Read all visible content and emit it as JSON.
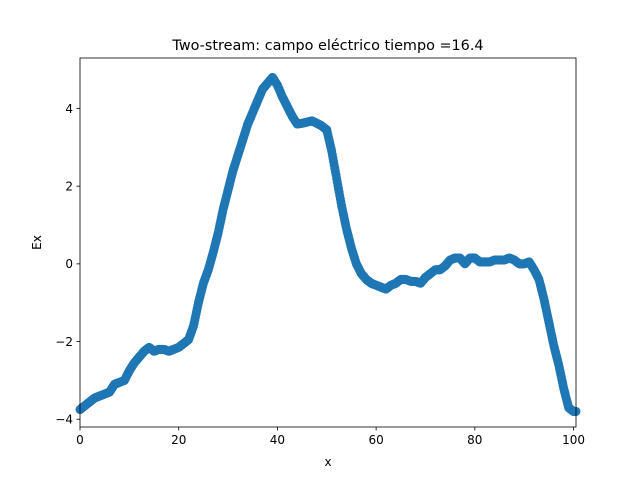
{
  "chart_data": {
    "type": "scatter",
    "title": "Two-stream: campo eléctrico  tiempo =16.4",
    "xlabel": "x",
    "ylabel": "Ex",
    "xlim": [
      0,
      100.5
    ],
    "ylim": [
      -4.2,
      5.3
    ],
    "xticks": [
      0,
      20,
      40,
      60,
      80,
      100
    ],
    "xtick_labels": [
      "0",
      "20",
      "40",
      "60",
      "80",
      "100"
    ],
    "yticks": [
      -4,
      -2,
      0,
      2,
      4
    ],
    "ytick_labels": [
      "−4",
      "−2",
      "0",
      "2",
      "4"
    ],
    "grid": false,
    "marker_color": "#1f77b4",
    "series": [
      {
        "points": [
          [
            0,
            -3.75
          ],
          [
            1,
            -3.65
          ],
          [
            2,
            -3.55
          ],
          [
            3,
            -3.45
          ],
          [
            4,
            -3.4
          ],
          [
            5,
            -3.35
          ],
          [
            6,
            -3.3
          ],
          [
            7,
            -3.1
          ],
          [
            8,
            -3.05
          ],
          [
            9,
            -3.0
          ],
          [
            10,
            -2.75
          ],
          [
            11,
            -2.55
          ],
          [
            12,
            -2.4
          ],
          [
            13,
            -2.25
          ],
          [
            14,
            -2.15
          ],
          [
            15,
            -2.25
          ],
          [
            16,
            -2.2
          ],
          [
            17,
            -2.2
          ],
          [
            18,
            -2.25
          ],
          [
            19,
            -2.2
          ],
          [
            20,
            -2.15
          ],
          [
            21,
            -2.05
          ],
          [
            22,
            -1.95
          ],
          [
            23,
            -1.6
          ],
          [
            24,
            -1.0
          ],
          [
            25,
            -0.5
          ],
          [
            26,
            -0.15
          ],
          [
            27,
            0.3
          ],
          [
            28,
            0.8
          ],
          [
            29,
            1.4
          ],
          [
            30,
            1.9
          ],
          [
            31,
            2.4
          ],
          [
            32,
            2.8
          ],
          [
            33,
            3.2
          ],
          [
            34,
            3.6
          ],
          [
            35,
            3.9
          ],
          [
            36,
            4.2
          ],
          [
            37,
            4.5
          ],
          [
            38,
            4.65
          ],
          [
            39,
            4.8
          ],
          [
            40,
            4.6
          ],
          [
            41,
            4.3
          ],
          [
            42,
            4.05
          ],
          [
            43,
            3.8
          ],
          [
            44,
            3.6
          ],
          [
            45,
            3.62
          ],
          [
            46,
            3.65
          ],
          [
            47,
            3.68
          ],
          [
            48,
            3.62
          ],
          [
            49,
            3.55
          ],
          [
            50,
            3.45
          ],
          [
            51,
            2.9
          ],
          [
            52,
            2.2
          ],
          [
            53,
            1.5
          ],
          [
            54,
            0.9
          ],
          [
            55,
            0.4
          ],
          [
            56,
            0.0
          ],
          [
            57,
            -0.25
          ],
          [
            58,
            -0.4
          ],
          [
            59,
            -0.5
          ],
          [
            60,
            -0.55
          ],
          [
            61,
            -0.6
          ],
          [
            62,
            -0.65
          ],
          [
            63,
            -0.55
          ],
          [
            64,
            -0.5
          ],
          [
            65,
            -0.4
          ],
          [
            66,
            -0.4
          ],
          [
            67,
            -0.45
          ],
          [
            68,
            -0.45
          ],
          [
            69,
            -0.5
          ],
          [
            70,
            -0.35
          ],
          [
            71,
            -0.25
          ],
          [
            72,
            -0.15
          ],
          [
            73,
            -0.15
          ],
          [
            74,
            -0.05
          ],
          [
            75,
            0.1
          ],
          [
            76,
            0.15
          ],
          [
            77,
            0.15
          ],
          [
            78,
            0.0
          ],
          [
            79,
            0.15
          ],
          [
            80,
            0.15
          ],
          [
            81,
            0.05
          ],
          [
            82,
            0.05
          ],
          [
            83,
            0.05
          ],
          [
            84,
            0.1
          ],
          [
            85,
            0.1
          ],
          [
            86,
            0.1
          ],
          [
            87,
            0.15
          ],
          [
            88,
            0.1
          ],
          [
            89,
            0.0
          ],
          [
            90,
            0.0
          ],
          [
            91,
            0.05
          ],
          [
            92,
            -0.15
          ],
          [
            93,
            -0.4
          ],
          [
            94,
            -0.9
          ],
          [
            95,
            -1.5
          ],
          [
            96,
            -2.1
          ],
          [
            97,
            -2.6
          ],
          [
            98,
            -3.2
          ],
          [
            99,
            -3.7
          ],
          [
            100,
            -3.8
          ],
          [
            100.5,
            -3.8
          ]
        ]
      }
    ]
  }
}
